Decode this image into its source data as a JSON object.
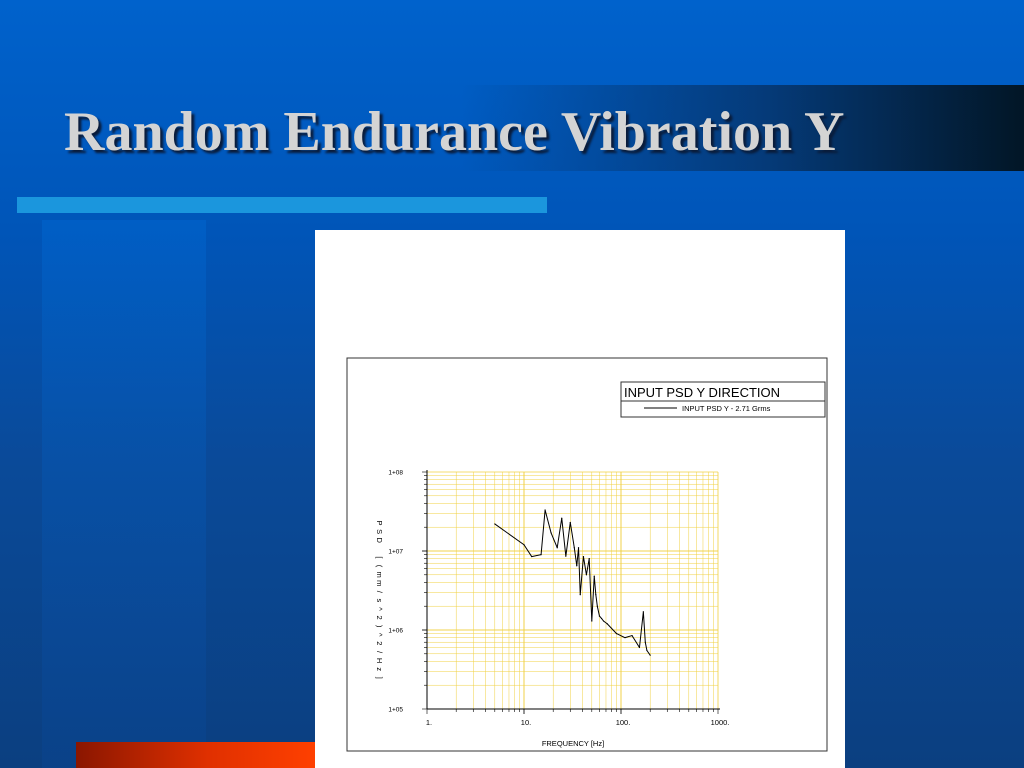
{
  "slide": {
    "title": "Random Endurance Vibration Y"
  },
  "colors": {
    "background": "#0062cc",
    "accent_bar": "#1b96dd",
    "bottom_bar": "#ff4000",
    "title_text": "#d4d4d4",
    "grid": "#f0d040",
    "series_line": "#000000"
  },
  "chart_data": {
    "type": "line",
    "title": "INPUT PSD Y DIRECTION",
    "xlabel": "FREQUENCY [Hz]",
    "ylabel": "PSD [(mm/s^2)^2/Hz]",
    "x_scale": "log",
    "y_scale": "log",
    "xlim": [
      1,
      1000
    ],
    "ylim": [
      100000,
      100000000
    ],
    "grid": true,
    "legend_position": "top-right",
    "x_ticks": [
      1,
      10,
      100,
      1000
    ],
    "x_tick_labels": [
      "1.",
      "10.",
      "100.",
      "1000."
    ],
    "y_ticks": [
      100000,
      1000000,
      10000000,
      100000000
    ],
    "y_tick_labels": [
      "1+05",
      "1+06",
      "1+07",
      "1+08"
    ],
    "series": [
      {
        "name": "INPUT PSD Y - 2.71 Grms",
        "x": [
          5,
          10,
          12,
          15,
          16.5,
          19,
          22,
          24.5,
          27,
          30,
          33,
          35,
          36.5,
          38,
          41,
          44,
          47,
          50,
          53,
          55,
          57,
          60,
          63,
          66,
          72,
          90,
          110,
          130,
          155,
          170,
          178,
          185,
          200
        ],
        "y": [
          22000000,
          12000000,
          8500000,
          9000000,
          33000000,
          17000000,
          11000000,
          26000000,
          8600000,
          23000000,
          11000000,
          6500000,
          11000000,
          2800000,
          8500000,
          5000000,
          8000000,
          1300000,
          4800000,
          2800000,
          2000000,
          1500000,
          1400000,
          1300000,
          1200000,
          900000,
          800000,
          850000,
          600000,
          1700000,
          700000,
          550000,
          480000
        ]
      }
    ]
  }
}
